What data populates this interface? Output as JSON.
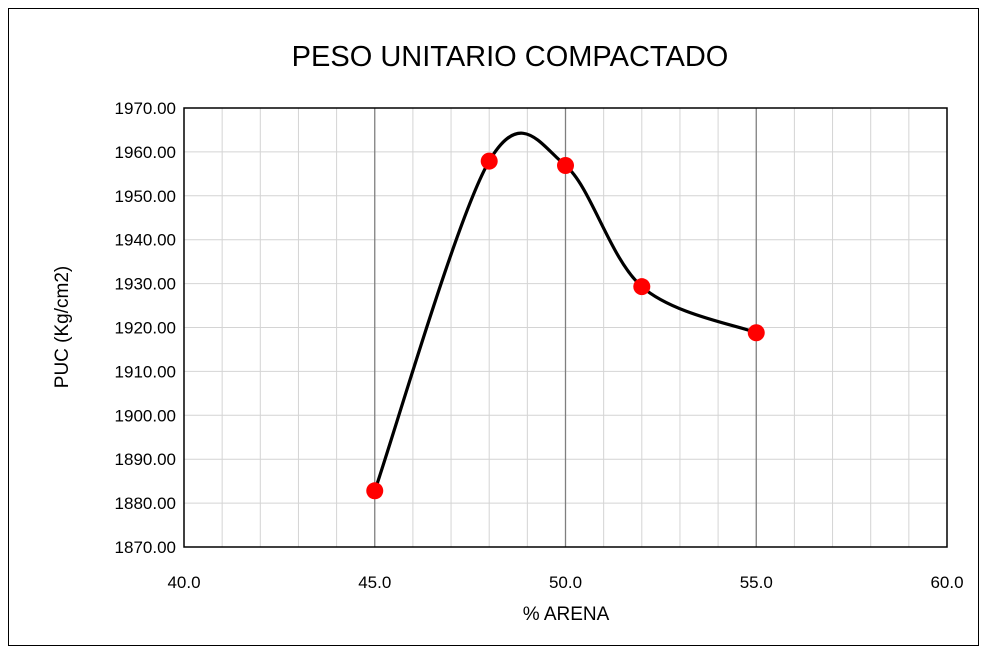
{
  "chart_data": {
    "type": "scatter",
    "title": "PESO UNITARIO COMPACTADO",
    "xlabel": "% ARENA",
    "ylabel": "PUC (Kg/cm2)",
    "xlim": [
      40,
      60
    ],
    "ylim": [
      1870,
      1970
    ],
    "x_ticks": [
      "40.0",
      "45.0",
      "50.0",
      "55.0",
      "60.0"
    ],
    "y_ticks": [
      "1870.00",
      "1880.00",
      "1890.00",
      "1900.00",
      "1910.00",
      "1920.00",
      "1930.00",
      "1940.00",
      "1950.00",
      "1960.00",
      "1970.00"
    ],
    "grid": true,
    "smooth_line": true,
    "series": [
      {
        "x": [
          45,
          48,
          50,
          52,
          55
        ],
        "y": [
          1882.8,
          1957.9,
          1956.9,
          1929.3,
          1918.8
        ],
        "marker_color": "#ff0000",
        "line_color": "#000000"
      }
    ]
  }
}
